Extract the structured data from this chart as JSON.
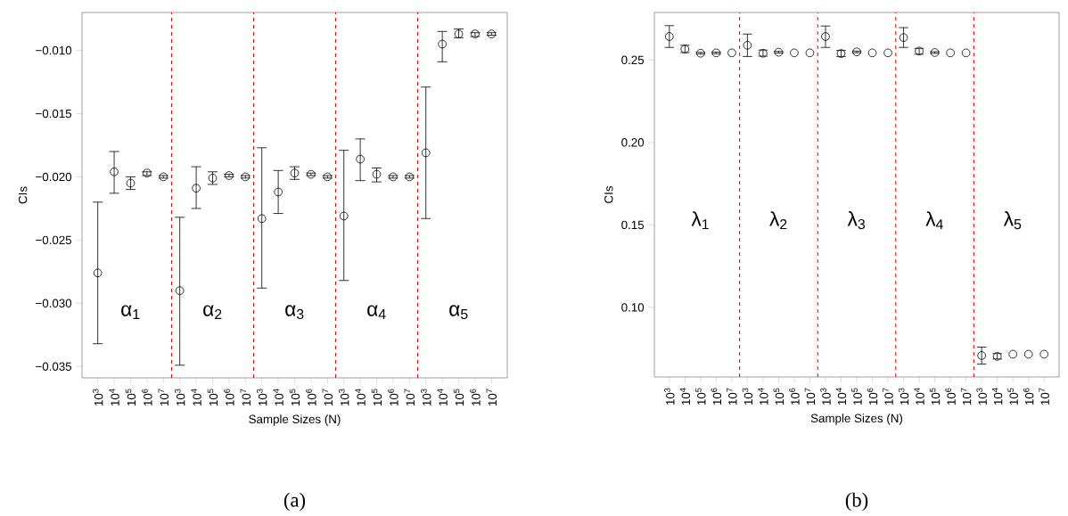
{
  "chart_data": [
    {
      "type": "scatter",
      "xlabel": "Sample Sizes (N)",
      "ylabel": "CIs",
      "categories": [
        "10$^{3}$",
        "10$^{4}$",
        "10$^{5}$",
        "10$^{6}$",
        "10$^{7}$",
        "10$^{3}$",
        "10$^{4}$",
        "10$^{5}$",
        "10$^{6}$",
        "10$^{7}$",
        "10$^{3}$",
        "10$^{4}$",
        "10$^{5}$",
        "10$^{6}$",
        "10$^{7}$",
        "10$^{3}$",
        "10$^{4}$",
        "10$^{5}$",
        "10$^{6}$",
        "10$^{7}$",
        "10$^{3}$",
        "10$^{4}$",
        "10$^{5}$",
        "10$^{6}$",
        "10$^{7}$"
      ],
      "series": [
        {
          "color": "#000000",
          "values": [
            -0.0276,
            -0.0196,
            -0.0205,
            -0.0197,
            -0.02,
            -0.029,
            -0.0209,
            -0.0201,
            -0.0199,
            -0.02,
            -0.0233,
            -0.0212,
            -0.0197,
            -0.0198,
            -0.02,
            -0.0231,
            -0.0186,
            -0.0198,
            -0.02,
            -0.02,
            -0.0181,
            -0.0095,
            -0.0087,
            -0.0087,
            -0.0087
          ],
          "errors": [
            [
              -0.0332,
              -0.022
            ],
            [
              -0.0213,
              -0.018
            ],
            [
              -0.021,
              -0.02
            ],
            [
              -0.0199,
              -0.0196
            ],
            [
              -0.0201,
              -0.0199
            ],
            [
              -0.0349,
              -0.0232
            ],
            [
              -0.0225,
              -0.0192
            ],
            [
              -0.0206,
              -0.0196
            ],
            [
              -0.02,
              -0.0198
            ],
            [
              -0.0201,
              -0.0199
            ],
            [
              -0.0288,
              -0.0177
            ],
            [
              -0.0229,
              -0.0195
            ],
            [
              -0.0202,
              -0.0192
            ],
            [
              -0.0199,
              -0.0197
            ],
            [
              -0.0201,
              -0.0199
            ],
            [
              -0.0282,
              -0.0179
            ],
            [
              -0.0203,
              -0.017
            ],
            [
              -0.0204,
              -0.0193
            ],
            [
              -0.0201,
              -0.0199
            ],
            [
              -0.0201,
              -0.0199
            ],
            [
              -0.0233,
              -0.0129
            ],
            [
              -0.0109,
              -0.0085
            ],
            [
              -0.009,
              -0.0083
            ],
            [
              -0.0089,
              -0.0086
            ],
            [
              -0.0088,
              -0.0086
            ]
          ]
        }
      ],
      "ylim": [
        -0.0359,
        -0.007
      ],
      "yticks": [
        {
          "value": -0.035,
          "label": "−0.035"
        },
        {
          "value": -0.03,
          "label": "−0.030"
        },
        {
          "value": -0.025,
          "label": "−0.025"
        },
        {
          "value": -0.02,
          "label": "−0.020"
        },
        {
          "value": -0.015,
          "label": "−0.015"
        },
        {
          "value": -0.01,
          "label": "−0.010"
        }
      ],
      "annotations": [
        "α$_{1}$",
        "α$_{2}$",
        "α$_{3}$",
        "α$_{4}$",
        "α$_{5}$",
        "(a)"
      ],
      "marker": "circle",
      "grid": false
    },
    {
      "type": "scatter",
      "xlabel": "Sample Sizes (N)",
      "ylabel": "CIs",
      "categories": [
        "10$^{3}$",
        "10$^{4}$",
        "10$^{5}$",
        "10$^{6}$",
        "10$^{7}$",
        "10$^{3}$",
        "10$^{4}$",
        "10$^{5}$",
        "10$^{6}$",
        "10$^{7}$",
        "10$^{3}$",
        "10$^{4}$",
        "10$^{5}$",
        "10$^{6}$",
        "10$^{7}$",
        "10$^{3}$",
        "10$^{4}$",
        "10$^{5}$",
        "10$^{6}$",
        "10$^{7}$",
        "10$^{3}$",
        "10$^{4}$",
        "10$^{5}$",
        "10$^{6}$",
        "10$^{7}$"
      ],
      "series": [
        {
          "color": "#000000",
          "values": [
            0.2642,
            0.2566,
            0.2541,
            0.2543,
            0.2543,
            0.2589,
            0.2541,
            0.2547,
            0.2543,
            0.2543,
            0.2642,
            0.2539,
            0.2549,
            0.2543,
            0.2543,
            0.2636,
            0.2554,
            0.2545,
            0.2543,
            0.2543,
            0.0708,
            0.0703,
            0.0716,
            0.0716,
            0.0716
          ],
          "errors": [
            [
              0.2576,
              0.2708
            ],
            [
              0.2545,
              0.2589
            ],
            [
              0.2536,
              0.2546
            ],
            [
              0.2538,
              0.2548
            ],
            null,
            [
              0.2521,
              0.2657
            ],
            [
              0.2523,
              0.256
            ],
            [
              0.2542,
              0.2552
            ],
            null,
            null,
            [
              0.2576,
              0.2706
            ],
            [
              0.2521,
              0.2558
            ],
            [
              0.2544,
              0.2554
            ],
            null,
            null,
            [
              0.2576,
              0.2696
            ],
            [
              0.2535,
              0.257
            ],
            [
              0.254,
              0.255
            ],
            null,
            null,
            [
              0.0656,
              0.0759
            ],
            [
              0.0687,
              0.072
            ],
            null,
            null,
            null
          ]
        }
      ],
      "ylim": [
        0.0578,
        0.2788
      ],
      "yticks": [
        {
          "value": 0.1,
          "label": "0.10"
        },
        {
          "value": 0.15,
          "label": "0.15"
        },
        {
          "value": 0.2,
          "label": "0.20"
        },
        {
          "value": 0.25,
          "label": "0.25"
        }
      ],
      "annotations": [
        "λ$_{1}$",
        "λ$_{2}$",
        "λ$_{3}$",
        "λ$_{4}$",
        "λ$_{5}$",
        "(b)"
      ],
      "marker": "circle",
      "grid": false
    }
  ]
}
